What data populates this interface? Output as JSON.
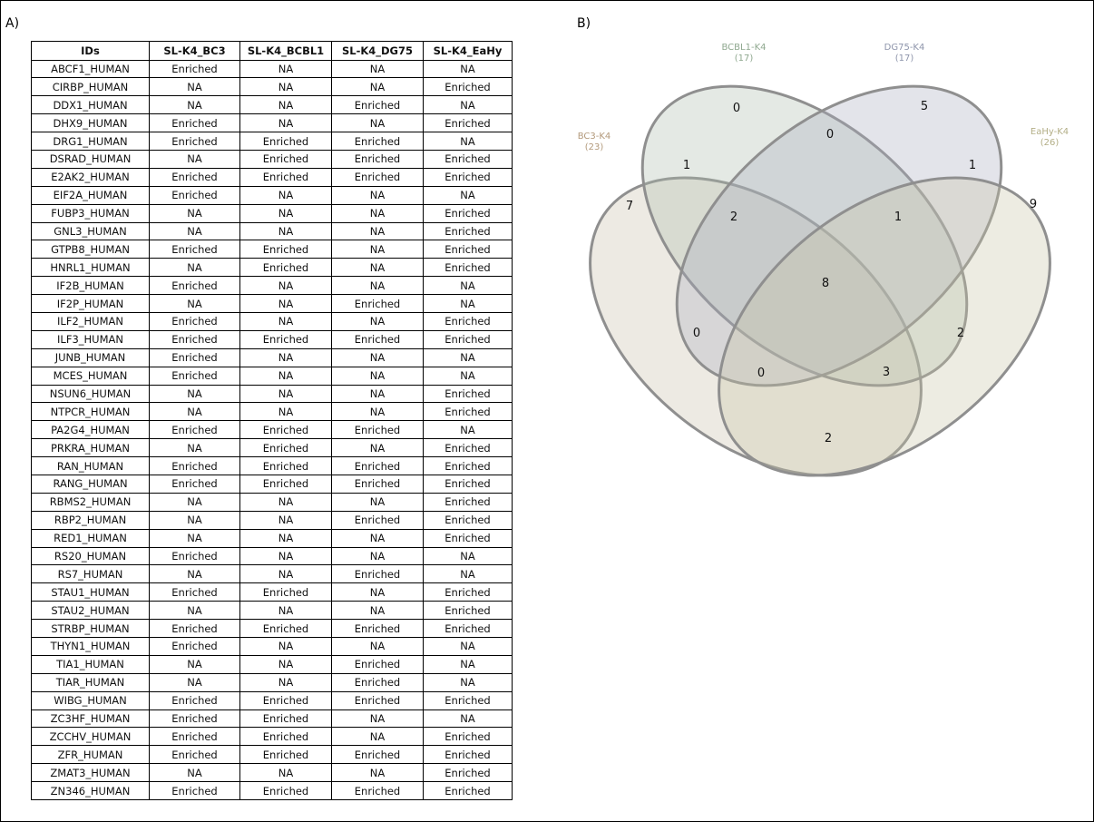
{
  "panels": {
    "a_label": "A)",
    "b_label": "B)"
  },
  "table": {
    "headers": [
      "IDs",
      "SL-K4_BC3",
      "SL-K4_BCBL1",
      "SL-K4_DG75",
      "SL-K4_EaHy"
    ],
    "rows": [
      [
        "ABCF1_HUMAN",
        "Enriched",
        "NA",
        "NA",
        "NA"
      ],
      [
        "CIRBP_HUMAN",
        "NA",
        "NA",
        "NA",
        "Enriched"
      ],
      [
        "DDX1_HUMAN",
        "NA",
        "NA",
        "Enriched",
        "NA"
      ],
      [
        "DHX9_HUMAN",
        "Enriched",
        "NA",
        "NA",
        "Enriched"
      ],
      [
        "DRG1_HUMAN",
        "Enriched",
        "Enriched",
        "Enriched",
        "NA"
      ],
      [
        "DSRAD_HUMAN",
        "NA",
        "Enriched",
        "Enriched",
        "Enriched"
      ],
      [
        "E2AK2_HUMAN",
        "Enriched",
        "Enriched",
        "Enriched",
        "Enriched"
      ],
      [
        "EIF2A_HUMAN",
        "Enriched",
        "NA",
        "NA",
        "NA"
      ],
      [
        "FUBP3_HUMAN",
        "NA",
        "NA",
        "NA",
        "Enriched"
      ],
      [
        "GNL3_HUMAN",
        "NA",
        "NA",
        "NA",
        "Enriched"
      ],
      [
        "GTPB8_HUMAN",
        "Enriched",
        "Enriched",
        "NA",
        "Enriched"
      ],
      [
        "HNRL1_HUMAN",
        "NA",
        "Enriched",
        "NA",
        "Enriched"
      ],
      [
        "IF2B_HUMAN",
        "Enriched",
        "NA",
        "NA",
        "NA"
      ],
      [
        "IF2P_HUMAN",
        "NA",
        "NA",
        "Enriched",
        "NA"
      ],
      [
        "ILF2_HUMAN",
        "Enriched",
        "NA",
        "NA",
        "Enriched"
      ],
      [
        "ILF3_HUMAN",
        "Enriched",
        "Enriched",
        "Enriched",
        "Enriched"
      ],
      [
        "JUNB_HUMAN",
        "Enriched",
        "NA",
        "NA",
        "NA"
      ],
      [
        "MCES_HUMAN",
        "Enriched",
        "NA",
        "NA",
        "NA"
      ],
      [
        "NSUN6_HUMAN",
        "NA",
        "NA",
        "NA",
        "Enriched"
      ],
      [
        "NTPCR_HUMAN",
        "NA",
        "NA",
        "NA",
        "Enriched"
      ],
      [
        "PA2G4_HUMAN",
        "Enriched",
        "Enriched",
        "Enriched",
        "NA"
      ],
      [
        "PRKRA_HUMAN",
        "NA",
        "Enriched",
        "NA",
        "Enriched"
      ],
      [
        "RAN_HUMAN",
        "Enriched",
        "Enriched",
        "Enriched",
        "Enriched"
      ],
      [
        "RANG_HUMAN",
        "Enriched",
        "Enriched",
        "Enriched",
        "Enriched"
      ],
      [
        "RBMS2_HUMAN",
        "NA",
        "NA",
        "NA",
        "Enriched"
      ],
      [
        "RBP2_HUMAN",
        "NA",
        "NA",
        "Enriched",
        "Enriched"
      ],
      [
        "RED1_HUMAN",
        "NA",
        "NA",
        "NA",
        "Enriched"
      ],
      [
        "RS20_HUMAN",
        "Enriched",
        "NA",
        "NA",
        "NA"
      ],
      [
        "RS7_HUMAN",
        "NA",
        "NA",
        "Enriched",
        "NA"
      ],
      [
        "STAU1_HUMAN",
        "Enriched",
        "Enriched",
        "NA",
        "Enriched"
      ],
      [
        "STAU2_HUMAN",
        "NA",
        "NA",
        "NA",
        "Enriched"
      ],
      [
        "STRBP_HUMAN",
        "Enriched",
        "Enriched",
        "Enriched",
        "Enriched"
      ],
      [
        "THYN1_HUMAN",
        "Enriched",
        "NA",
        "NA",
        "NA"
      ],
      [
        "TIA1_HUMAN",
        "NA",
        "NA",
        "Enriched",
        "NA"
      ],
      [
        "TIAR_HUMAN",
        "NA",
        "NA",
        "Enriched",
        "NA"
      ],
      [
        "WIBG_HUMAN",
        "Enriched",
        "Enriched",
        "Enriched",
        "Enriched"
      ],
      [
        "ZC3HF_HUMAN",
        "Enriched",
        "Enriched",
        "NA",
        "NA"
      ],
      [
        "ZCCHV_HUMAN",
        "Enriched",
        "Enriched",
        "NA",
        "Enriched"
      ],
      [
        "ZFR_HUMAN",
        "Enriched",
        "Enriched",
        "Enriched",
        "Enriched"
      ],
      [
        "ZMAT3_HUMAN",
        "NA",
        "NA",
        "NA",
        "Enriched"
      ],
      [
        "ZN346_HUMAN",
        "Enriched",
        "Enriched",
        "Enriched",
        "Enriched"
      ]
    ]
  },
  "venn": {
    "sets": [
      {
        "name": "BC3-K4",
        "count": "(23)",
        "color": "#b39a7c"
      },
      {
        "name": "BCBL1-K4",
        "count": "(17)",
        "color": "#8fa88f"
      },
      {
        "name": "DG75-K4",
        "count": "(17)",
        "color": "#8e95ab"
      },
      {
        "name": "EaHy-K4",
        "count": "(26)",
        "color": "#b3ae86"
      }
    ],
    "regions": {
      "bc3_only": "7",
      "bcbl1_only": "0",
      "dg75_only": "5",
      "eahy_only": "9",
      "bc3_bcbl1": "1",
      "bcbl1_dg75": "0",
      "dg75_eahy": "1",
      "bc3_bcbl1_dg75": "2",
      "bcbl1_dg75_eahy": "1",
      "all_four": "8",
      "bc3_dg75": "0",
      "bcbl1_eahy": "2",
      "bc3_dg75_eahy": "0",
      "bc3_bcbl1_eahy": "3",
      "bc3_eahy": "2"
    }
  }
}
